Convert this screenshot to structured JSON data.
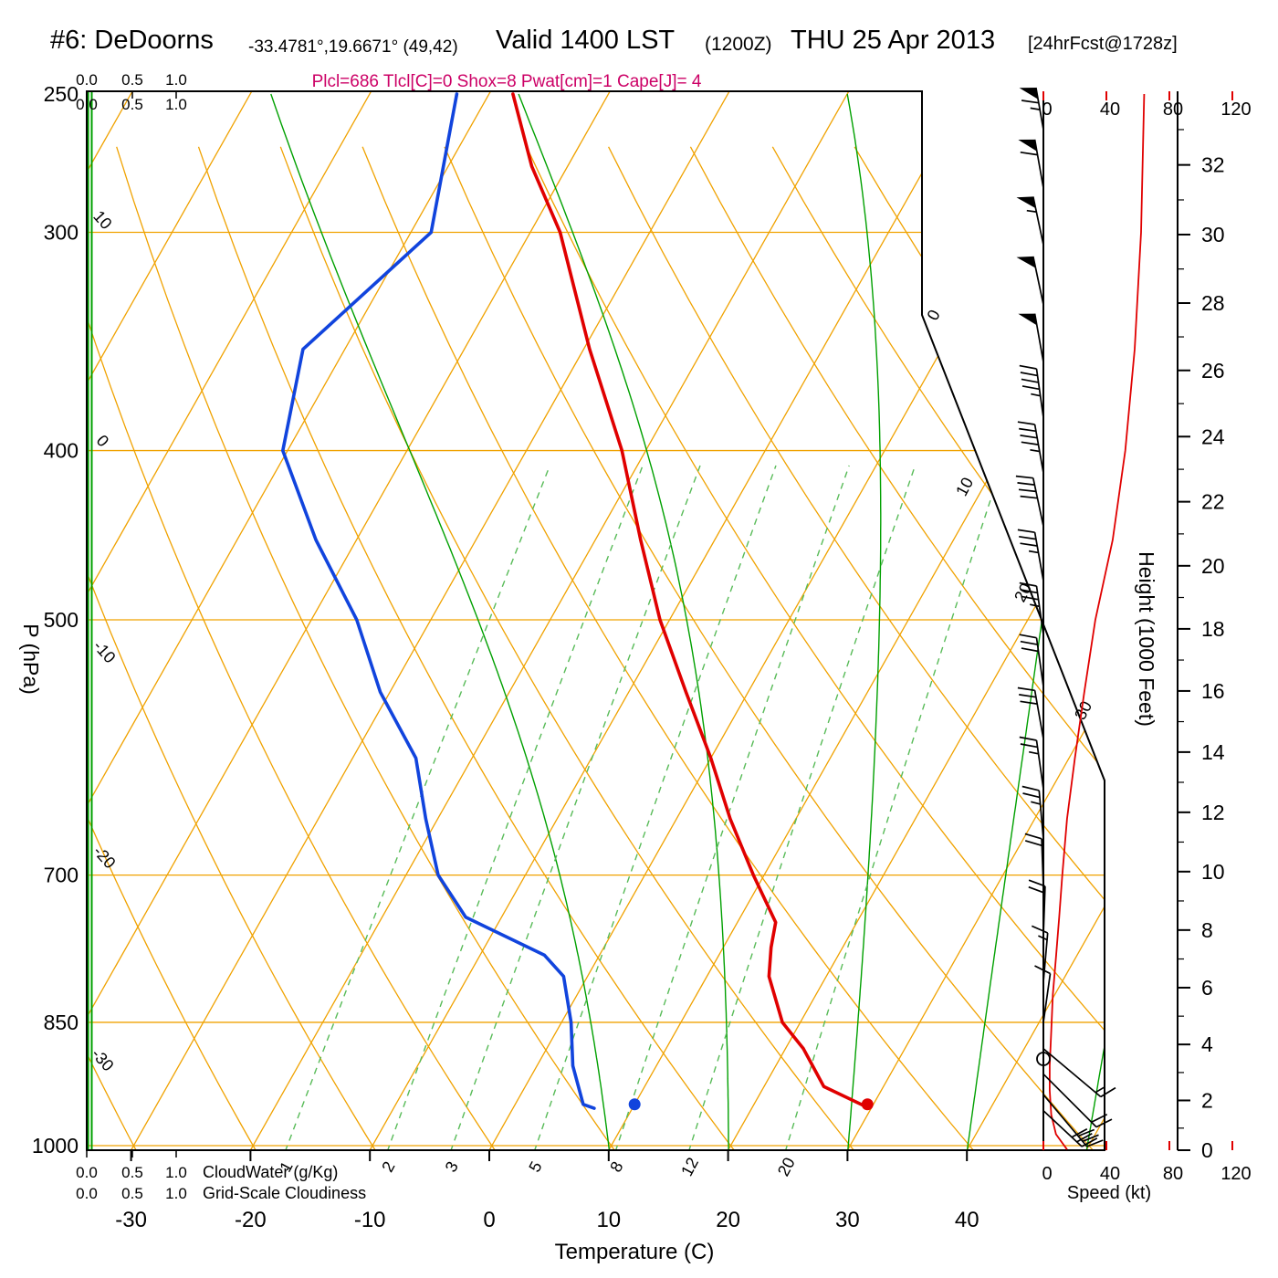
{
  "header": {
    "station": "#6: DeDoorns",
    "coords": "-33.4781°,19.6671° (49,42)",
    "valid": "Valid 1400 LST",
    "valid_z": "(1200Z)",
    "valid_date": "THU 25 Apr 2013",
    "fcst": "[24hrFcst@1728z]",
    "params": "Plcl=686 Tlcl[C]=0 Shox=8 Pwat[cm]=1 Cape[J]= 4"
  },
  "axes": {
    "pressure_label": "P (hPa)",
    "temp_label": "Temperature (C)",
    "height_label": "Height (1000 Feet)",
    "speed_label": "Speed (kt)",
    "cloudwater_label": "CloudWater (g/Kg)",
    "cloudiness_label": "Grid-Scale Cloudiness",
    "cloud_scale": [
      "0.0",
      "0.5",
      "1.0"
    ],
    "dry_adiabat_labels": [
      10,
      0,
      -10,
      -20,
      -30
    ],
    "isotherm_labels": [
      0,
      10,
      20,
      30
    ]
  },
  "colors": {
    "grid_orange": "#f0a200",
    "green": "#00a000",
    "green_dashed": "#58bb58",
    "temperature_red": "#e00000",
    "dewpoint_blue": "#1144dd",
    "speed_red": "#e00000",
    "magenta": "#cc0066",
    "black": "#000000"
  },
  "chart_data": {
    "type": "line",
    "variant": "skew-t log-p thermodynamic sounding",
    "pressure_axis_hpa": [
      250,
      300,
      400,
      500,
      700,
      850,
      1000
    ],
    "temperature_axis_c": [
      -30,
      -20,
      -10,
      0,
      10,
      20,
      30,
      40
    ],
    "height_axis_kft": [
      0,
      2,
      4,
      6,
      8,
      10,
      12,
      14,
      16,
      18,
      20,
      22,
      24,
      26,
      28,
      30,
      32
    ],
    "speed_axis_kt": [
      0,
      40,
      80,
      120
    ],
    "isotherms_c_range": [
      -80,
      50,
      10
    ],
    "dry_adiabats_c_range": [
      -30,
      110,
      10
    ],
    "moist_adiabats_c": [
      10,
      20,
      30,
      40,
      50
    ],
    "mixing_ratio_labels_gkg": [
      1,
      2,
      3,
      5,
      8,
      12,
      20
    ],
    "temperature_profile": [
      [
        950,
        29.5
      ],
      [
        925,
        25.0
      ],
      [
        880,
        21.5
      ],
      [
        850,
        18.5
      ],
      [
        800,
        15.2
      ],
      [
        770,
        14.0
      ],
      [
        745,
        13.2
      ],
      [
        700,
        9.1
      ],
      [
        650,
        4.5
      ],
      [
        600,
        0.0
      ],
      [
        550,
        -5.2
      ],
      [
        500,
        -10.8
      ],
      [
        450,
        -16.2
      ],
      [
        400,
        -22.0
      ],
      [
        350,
        -29.5
      ],
      [
        300,
        -37.5
      ],
      [
        275,
        -43.0
      ],
      [
        250,
        -48.0
      ]
    ],
    "dewpoint_profile": [
      [
        952,
        6.8
      ],
      [
        947,
        5.7
      ],
      [
        900,
        3.0
      ],
      [
        850,
        0.8
      ],
      [
        800,
        -2.0
      ],
      [
        778,
        -4.6
      ],
      [
        740,
        -13.0
      ],
      [
        700,
        -17.3
      ],
      [
        650,
        -21.0
      ],
      [
        600,
        -24.7
      ],
      [
        550,
        -30.8
      ],
      [
        500,
        -36.2
      ],
      [
        450,
        -43.4
      ],
      [
        400,
        -50.4
      ],
      [
        350,
        -53.5
      ],
      [
        300,
        -48.3
      ],
      [
        250,
        -52.7
      ]
    ],
    "surface_temperature": {
      "pressure": 947,
      "value": 29.5
    },
    "surface_dewpoint": {
      "pressure": 947,
      "value": 10.0
    },
    "wind_speed_profile_kt": [
      [
        1005,
        15
      ],
      [
        985,
        8
      ],
      [
        960,
        5
      ],
      [
        930,
        4
      ],
      [
        900,
        4
      ],
      [
        860,
        5
      ],
      [
        820,
        6
      ],
      [
        780,
        8
      ],
      [
        740,
        10
      ],
      [
        700,
        12
      ],
      [
        650,
        15
      ],
      [
        600,
        20
      ],
      [
        550,
        26
      ],
      [
        500,
        33
      ],
      [
        450,
        44
      ],
      [
        400,
        52
      ],
      [
        350,
        58
      ],
      [
        300,
        62
      ],
      [
        250,
        64
      ]
    ],
    "wind_barbs": [
      [
        262,
        350,
        65
      ],
      [
        283,
        350,
        60
      ],
      [
        305,
        348,
        55
      ],
      [
        330,
        348,
        50
      ],
      [
        356,
        350,
        50
      ],
      [
        383,
        352,
        45
      ],
      [
        412,
        350,
        45
      ],
      [
        442,
        348,
        40
      ],
      [
        475,
        350,
        35
      ],
      [
        510,
        352,
        35
      ],
      [
        546,
        352,
        30
      ],
      [
        585,
        350,
        30
      ],
      [
        625,
        352,
        25
      ],
      [
        668,
        355,
        25
      ],
      [
        712,
        358,
        20
      ],
      [
        758,
        2,
        20
      ],
      [
        806,
        5,
        15
      ],
      [
        850,
        8,
        12
      ],
      [
        880,
        130,
        15
      ],
      [
        910,
        135,
        20
      ],
      [
        935,
        140,
        28
      ],
      [
        955,
        133,
        30
      ]
    ]
  }
}
